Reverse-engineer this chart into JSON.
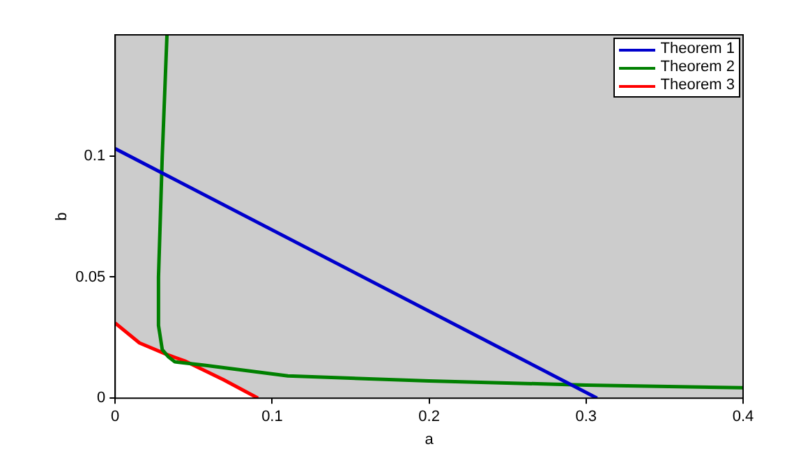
{
  "chart_data": {
    "type": "line",
    "xlabel": "a",
    "ylabel": "b",
    "xlim": [
      0,
      0.4
    ],
    "ylim": [
      0,
      0.15
    ],
    "xticks": [
      0,
      0.1,
      0.2,
      0.3,
      0.4
    ],
    "yticks": [
      0,
      0.05,
      0.1
    ],
    "legend": "top right",
    "series": [
      {
        "name": "Theorem 1",
        "color": "#0000cc",
        "x": [
          0,
          0.307
        ],
        "values": [
          0.103,
          0
        ]
      },
      {
        "name": "Theorem 2",
        "color": "#008000",
        "x": [
          0.033,
          0.03,
          0.0276,
          0.0276,
          0.03,
          0.034,
          0.038,
          0.057,
          0.11,
          0.2,
          0.3,
          0.4
        ],
        "values": [
          0.15,
          0.1,
          0.05,
          0.03,
          0.02,
          0.017,
          0.015,
          0.0136,
          0.0092,
          0.0071,
          0.0054,
          0.0043
        ]
      },
      {
        "name": "Theorem 3",
        "color": "#ff0000",
        "x": [
          0,
          0.0155,
          0.033,
          0.045,
          0.069,
          0.091
        ],
        "values": [
          0.031,
          0.0228,
          0.018,
          0.0152,
          0.0076,
          0
        ]
      }
    ]
  }
}
